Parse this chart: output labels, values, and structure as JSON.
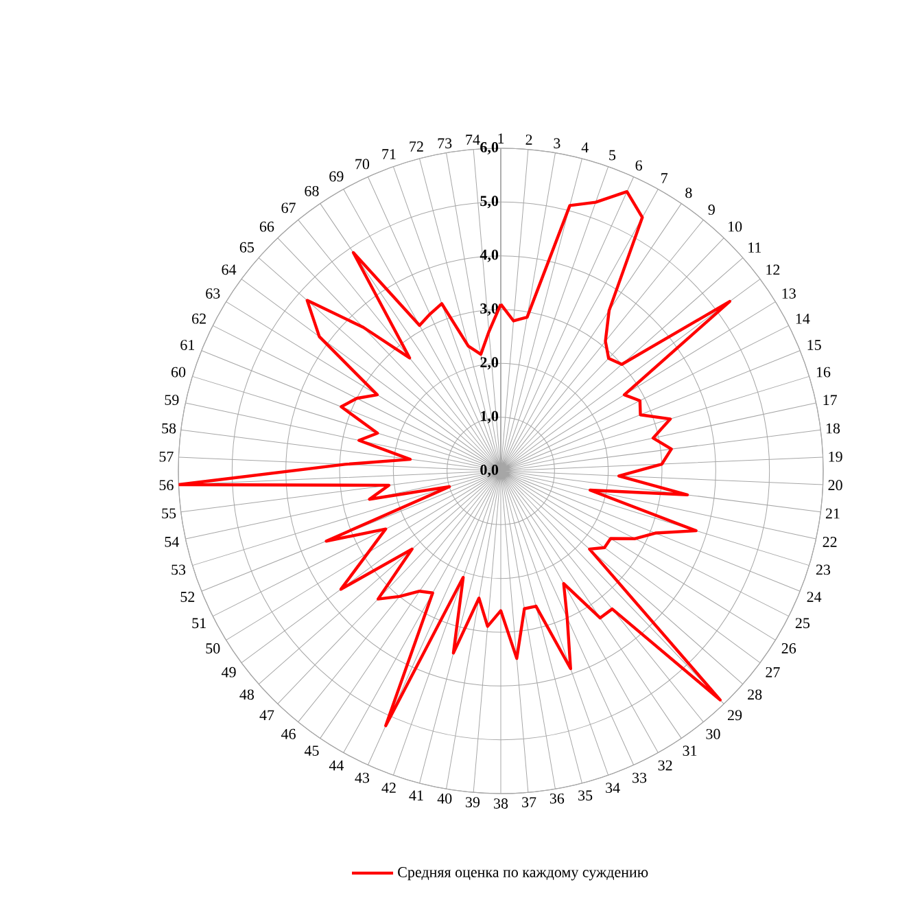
{
  "chart_data": {
    "type": "radar",
    "categories": [
      "1",
      "2",
      "3",
      "4",
      "5",
      "6",
      "7",
      "8",
      "9",
      "10",
      "11",
      "12",
      "13",
      "14",
      "15",
      "16",
      "17",
      "18",
      "19",
      "20",
      "21",
      "22",
      "23",
      "24",
      "25",
      "26",
      "27",
      "28",
      "29",
      "30",
      "31",
      "32",
      "33",
      "34",
      "35",
      "36",
      "37",
      "38",
      "39",
      "40",
      "41",
      "42",
      "43",
      "44",
      "45",
      "46",
      "47",
      "48",
      "49",
      "50",
      "51",
      "52",
      "53",
      "54",
      "55",
      "56",
      "57",
      "58",
      "59",
      "60",
      "61",
      "62",
      "63",
      "64",
      "65",
      "66",
      "67",
      "68",
      "69",
      "70",
      "71",
      "72",
      "73",
      "74"
    ],
    "series": [
      {
        "name": "Средняя оценка по каждому суждению",
        "color": "#ff0000",
        "values": [
          3.1,
          2.8,
          2.9,
          5.1,
          5.3,
          5.7,
          5.4,
          3.6,
          3.1,
          2.9,
          3.0,
          5.3,
          2.7,
          2.9,
          2.8,
          3.3,
          2.9,
          3.2,
          3.0,
          2.2,
          3.5,
          1.7,
          3.8,
          3.1,
          2.8,
          2.4,
          2.4,
          2.2,
          5.9,
          3.3,
          3.3,
          2.4,
          3.0,
          3.9,
          2.6,
          2.6,
          3.5,
          2.6,
          2.9,
          2.4,
          3.5,
          2.1,
          5.2,
          2.6,
          2.7,
          3.0,
          3.3,
          2.2,
          3.7,
          2.9,
          2.4,
          3.5,
          1.0,
          2.5,
          2.1,
          6.0,
          2.9,
          1.7,
          2.7,
          2.4,
          3.2,
          3.0,
          2.7,
          4.2,
          4.8,
          3.7,
          2.7,
          4.9,
          3.1,
          3.2,
          3.3,
          2.4,
          2.2,
          2.6
        ]
      }
    ],
    "ylim": [
      0,
      6
    ],
    "yticks": [
      {
        "value": 0,
        "label": "0,0"
      },
      {
        "value": 1,
        "label": "1,0"
      },
      {
        "value": 2,
        "label": "2,0"
      },
      {
        "value": 3,
        "label": "3,0"
      },
      {
        "value": 4,
        "label": "4,0"
      },
      {
        "value": 5,
        "label": "5,0"
      },
      {
        "value": 6,
        "label": "6,0"
      }
    ],
    "grid": true,
    "legend": "bottom"
  }
}
